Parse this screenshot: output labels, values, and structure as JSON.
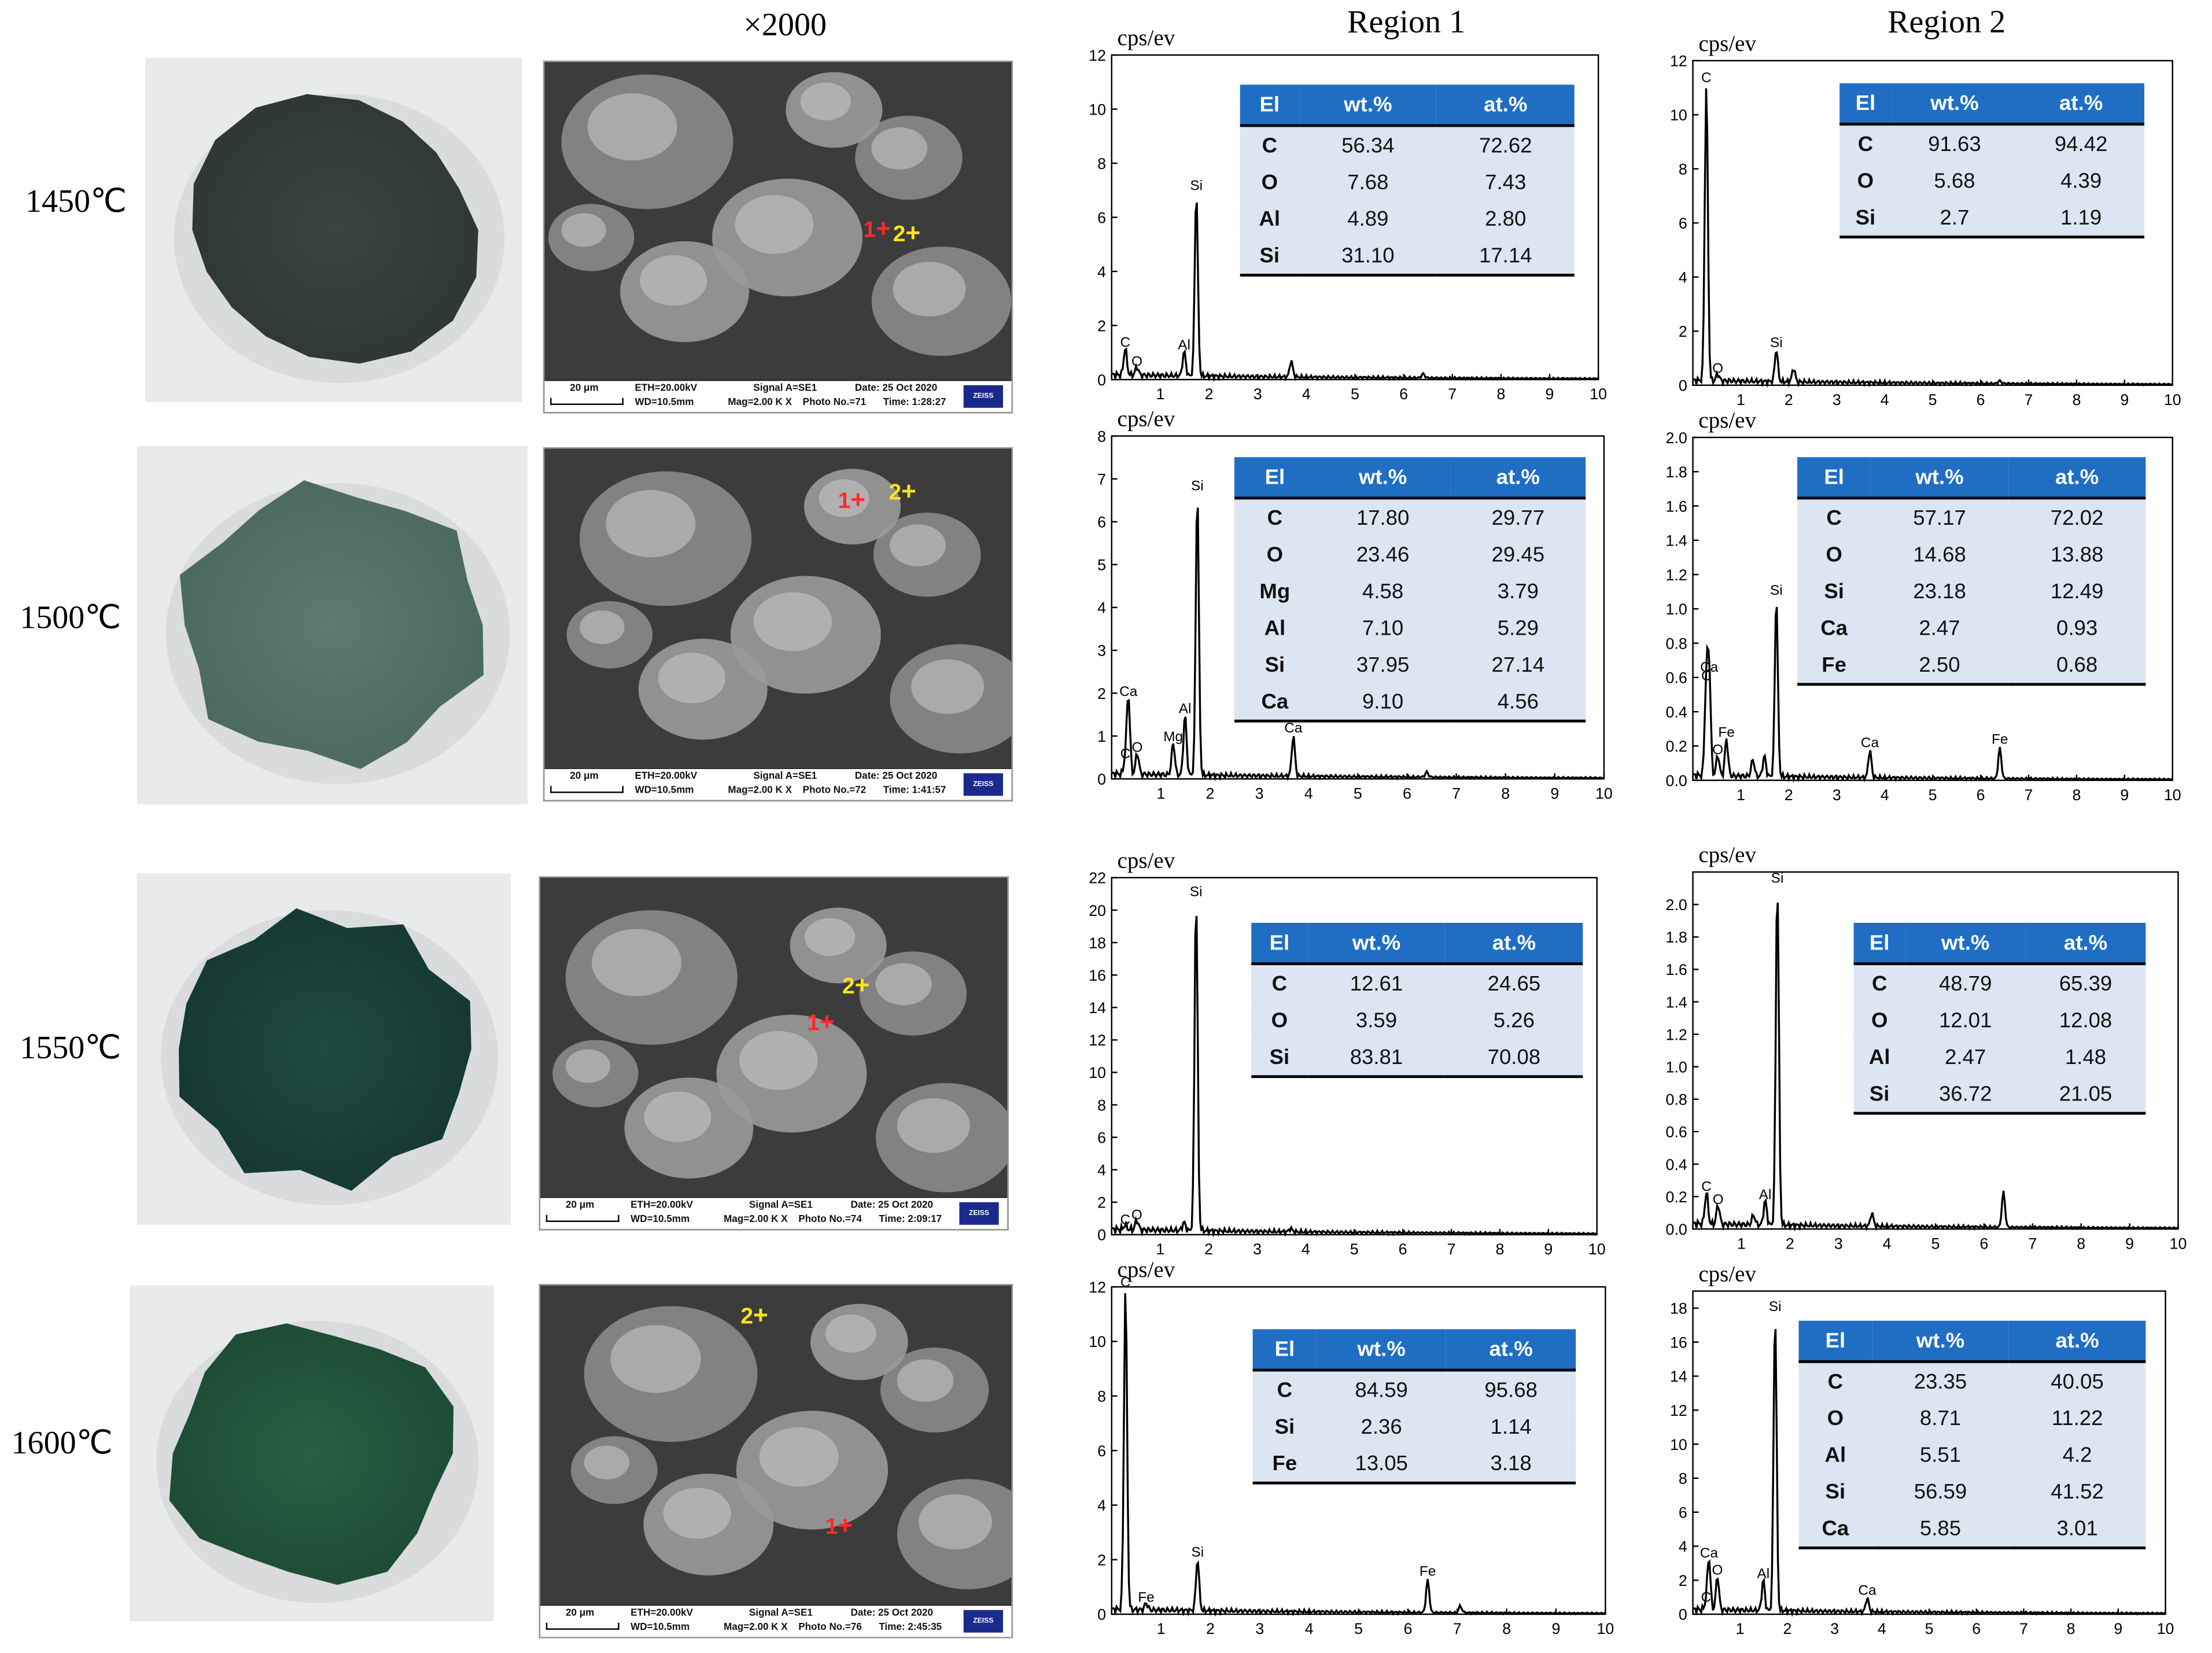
{
  "headers": {
    "magnification": "×2000",
    "region1": "Region 1",
    "region2": "Region 2"
  },
  "table_headers": [
    "El",
    "wt.%",
    "at.%"
  ],
  "sem_strip": {
    "scale": "20 μm",
    "eth": "ETH=20.00kV",
    "wd": "WD=10.5mm",
    "signal": "Signal A=SE1",
    "mag": "Mag=2.00 K X",
    "date": "Date:  25 Oct 2020",
    "logo": "ZEISS"
  },
  "marker_labels": [
    "1",
    "2"
  ],
  "rows": [
    {
      "temp": "1450℃",
      "photo_no": "Photo No.=71",
      "time": "Time: 1:28:27",
      "region1": {
        "ylabel": "cps/ev",
        "ymax": 12,
        "yticks": [
          0,
          2,
          4,
          6,
          8,
          10,
          12
        ],
        "table": [
          [
            "C",
            "56.34",
            "72.62"
          ],
          [
            "O",
            "7.68",
            "7.43"
          ],
          [
            "Al",
            "4.89",
            "2.80"
          ],
          [
            "Si",
            "31.10",
            "17.14"
          ]
        ],
        "peaks": [
          {
            "x": 0.28,
            "y": 1.0,
            "label": "C"
          },
          {
            "x": 0.52,
            "y": 0.3,
            "label": "O"
          },
          {
            "x": 1.49,
            "y": 0.9,
            "label": "Al"
          },
          {
            "x": 1.74,
            "y": 6.8,
            "label": "Si"
          },
          {
            "x": 3.69,
            "y": 0.6,
            "label": ""
          },
          {
            "x": 6.4,
            "y": 0.15,
            "label": ""
          }
        ]
      },
      "region2": {
        "ylabel": "cps/ev",
        "ymax": 12,
        "yticks": [
          0,
          2,
          4,
          6,
          8,
          10,
          12
        ],
        "table": [
          [
            "C",
            "91.63",
            "94.42"
          ],
          [
            "O",
            "5.68",
            "4.39"
          ],
          [
            "Si",
            "2.7",
            "1.19"
          ]
        ],
        "peaks": [
          {
            "x": 0.28,
            "y": 11.0,
            "label": "C"
          },
          {
            "x": 0.52,
            "y": 0.25,
            "label": "O"
          },
          {
            "x": 1.74,
            "y": 1.2,
            "label": "Si"
          },
          {
            "x": 2.1,
            "y": 0.5,
            "label": ""
          },
          {
            "x": 6.4,
            "y": 0.1,
            "label": ""
          }
        ]
      }
    },
    {
      "temp": "1500℃",
      "photo_no": "Photo No.=72",
      "time": "Time: 1:41:57",
      "region1": {
        "ylabel": "cps/ev",
        "ymax": 8,
        "yticks": [
          0,
          1,
          2,
          3,
          4,
          5,
          6,
          7,
          8
        ],
        "table": [
          [
            "C",
            "17.80",
            "29.77"
          ],
          [
            "O",
            "23.46",
            "29.45"
          ],
          [
            "Mg",
            "4.58",
            "3.79"
          ],
          [
            "Al",
            "7.10",
            "5.29"
          ],
          [
            "Si",
            "37.95",
            "27.14"
          ],
          [
            "Ca",
            "9.10",
            "4.56"
          ]
        ],
        "peaks": [
          {
            "x": 0.28,
            "y": 0.35,
            "label": "C"
          },
          {
            "x": 0.34,
            "y": 1.8,
            "label": "Ca"
          },
          {
            "x": 0.52,
            "y": 0.5,
            "label": "O"
          },
          {
            "x": 1.25,
            "y": 0.75,
            "label": "Mg"
          },
          {
            "x": 1.49,
            "y": 1.4,
            "label": "Al"
          },
          {
            "x": 1.74,
            "y": 6.6,
            "label": "Si"
          },
          {
            "x": 3.69,
            "y": 0.95,
            "label": "Ca"
          },
          {
            "x": 6.4,
            "y": 0.12,
            "label": ""
          }
        ]
      },
      "region2": {
        "ylabel": "cps/ev",
        "ymax": 2.0,
        "yticks": [
          0,
          0.2,
          0.4,
          0.6,
          0.8,
          1.0,
          1.2,
          1.4,
          1.6,
          1.8,
          2.0
        ],
        "table": [
          [
            "C",
            "57.17",
            "72.02"
          ],
          [
            "O",
            "14.68",
            "13.88"
          ],
          [
            "Si",
            "23.18",
            "12.49"
          ],
          [
            "Ca",
            "2.47",
            "0.93"
          ],
          [
            "Fe",
            "2.50",
            "0.68"
          ]
        ],
        "peaks": [
          {
            "x": 0.28,
            "y": 0.55,
            "label": "C"
          },
          {
            "x": 0.34,
            "y": 0.6,
            "label": "Ca"
          },
          {
            "x": 0.52,
            "y": 0.12,
            "label": "O"
          },
          {
            "x": 0.7,
            "y": 0.22,
            "label": "Fe"
          },
          {
            "x": 1.25,
            "y": 0.1,
            "label": ""
          },
          {
            "x": 1.49,
            "y": 0.12,
            "label": ""
          },
          {
            "x": 1.74,
            "y": 1.05,
            "label": "Si"
          },
          {
            "x": 3.69,
            "y": 0.16,
            "label": "Ca"
          },
          {
            "x": 6.4,
            "y": 0.18,
            "label": "Fe"
          }
        ]
      }
    },
    {
      "temp": "1550℃",
      "photo_no": "Photo No.=74",
      "time": "Time: 2:09:17",
      "region1": {
        "ylabel": "cps/ev",
        "ymax": 22,
        "yticks": [
          0,
          2,
          4,
          6,
          8,
          10,
          12,
          14,
          16,
          18,
          20,
          22
        ],
        "table": [
          [
            "C",
            "12.61",
            "24.65"
          ],
          [
            "O",
            "3.59",
            "5.26"
          ],
          [
            "Si",
            "83.81",
            "70.08"
          ]
        ],
        "peaks": [
          {
            "x": 0.28,
            "y": 0.3,
            "label": "C"
          },
          {
            "x": 0.52,
            "y": 0.6,
            "label": "O"
          },
          {
            "x": 1.49,
            "y": 0.5,
            "label": ""
          },
          {
            "x": 1.74,
            "y": 20.5,
            "label": "Si"
          },
          {
            "x": 3.69,
            "y": 0.2,
            "label": ""
          }
        ]
      },
      "region2": {
        "ylabel": "cps/ev",
        "ymax": 2.2,
        "yticks": [
          0,
          0.2,
          0.4,
          0.6,
          0.8,
          1.0,
          1.2,
          1.4,
          1.6,
          1.8,
          2.0
        ],
        "table": [
          [
            "C",
            "48.79",
            "65.39"
          ],
          [
            "O",
            "12.01",
            "12.08"
          ],
          [
            "Al",
            "2.47",
            "1.48"
          ],
          [
            "Si",
            "36.72",
            "21.05"
          ]
        ],
        "peaks": [
          {
            "x": 0.28,
            "y": 0.2,
            "label": "C"
          },
          {
            "x": 0.52,
            "y": 0.12,
            "label": "O"
          },
          {
            "x": 1.25,
            "y": 0.06,
            "label": ""
          },
          {
            "x": 1.49,
            "y": 0.15,
            "label": "Al"
          },
          {
            "x": 1.74,
            "y": 2.1,
            "label": "Si"
          },
          {
            "x": 3.69,
            "y": 0.08,
            "label": ""
          },
          {
            "x": 6.4,
            "y": 0.22,
            "label": ""
          }
        ]
      }
    },
    {
      "temp": "1600℃",
      "photo_no": "Photo No.=76",
      "time": "Time: 2:45:35",
      "region1": {
        "ylabel": "cps/ev",
        "ymax": 12,
        "yticks": [
          0,
          2,
          4,
          6,
          8,
          10,
          12
        ],
        "table": [
          [
            "C",
            "84.59",
            "95.68"
          ],
          [
            "Si",
            "2.36",
            "1.14"
          ],
          [
            "Fe",
            "13.05",
            "3.18"
          ]
        ],
        "peaks": [
          {
            "x": 0.28,
            "y": 11.8,
            "label": "C"
          },
          {
            "x": 0.7,
            "y": 0.25,
            "label": "Fe"
          },
          {
            "x": 1.74,
            "y": 1.9,
            "label": "Si"
          },
          {
            "x": 6.4,
            "y": 1.2,
            "label": "Fe"
          },
          {
            "x": 7.06,
            "y": 0.25,
            "label": ""
          }
        ]
      },
      "region2": {
        "ylabel": "cps/ev",
        "ymax": 19,
        "yticks": [
          0,
          2,
          4,
          6,
          8,
          10,
          12,
          14,
          16,
          18
        ],
        "table": [
          [
            "C",
            "23.35",
            "40.05"
          ],
          [
            "O",
            "8.71",
            "11.22"
          ],
          [
            "Al",
            "5.51",
            "4.2"
          ],
          [
            "Si",
            "56.59",
            "41.52"
          ],
          [
            "Ca",
            "5.85",
            "3.01"
          ]
        ],
        "peaks": [
          {
            "x": 0.28,
            "y": 0.4,
            "label": "C"
          },
          {
            "x": 0.34,
            "y": 3.0,
            "label": "Ca"
          },
          {
            "x": 0.52,
            "y": 2.0,
            "label": "O"
          },
          {
            "x": 1.49,
            "y": 1.8,
            "label": "Al"
          },
          {
            "x": 1.74,
            "y": 17.5,
            "label": "Si"
          },
          {
            "x": 3.69,
            "y": 0.8,
            "label": "Ca"
          }
        ]
      }
    }
  ],
  "chart_data": [
    {
      "type": "line",
      "title": "Region 1",
      "xlim": [
        0,
        10
      ],
      "ylim": [
        0,
        12
      ],
      "ylabel": "cps/ev",
      "series": [
        {
          "values": [
            [
              0.28,
              1.0
            ],
            [
              0.52,
              0.3
            ],
            [
              1.49,
              0.9
            ],
            [
              1.74,
              6.8
            ],
            [
              3.69,
              0.6
            ]
          ]
        }
      ]
    },
    {
      "type": "line",
      "title": "Region 2",
      "xlim": [
        0,
        10
      ],
      "ylim": [
        0,
        12
      ],
      "ylabel": "cps/ev",
      "series": [
        {
          "values": [
            [
              0.28,
              11.0
            ],
            [
              0.52,
              0.25
            ],
            [
              1.74,
              1.2
            ],
            [
              2.1,
              0.5
            ]
          ]
        }
      ]
    },
    {
      "type": "line",
      "title": "",
      "xlim": [
        0,
        10
      ],
      "ylim": [
        0,
        8
      ],
      "ylabel": "cps/ev",
      "series": [
        {
          "values": [
            [
              0.34,
              1.8
            ],
            [
              0.52,
              0.5
            ],
            [
              1.25,
              0.75
            ],
            [
              1.49,
              1.4
            ],
            [
              1.74,
              6.6
            ],
            [
              3.69,
              0.95
            ]
          ]
        }
      ]
    },
    {
      "type": "line",
      "title": "",
      "xlim": [
        0,
        10
      ],
      "ylim": [
        0,
        2.0
      ],
      "ylabel": "cps/ev",
      "series": [
        {
          "values": [
            [
              0.28,
              0.55
            ],
            [
              0.52,
              0.12
            ],
            [
              0.7,
              0.22
            ],
            [
              1.74,
              1.05
            ],
            [
              3.69,
              0.16
            ],
            [
              6.4,
              0.18
            ]
          ]
        }
      ]
    },
    {
      "type": "line",
      "title": "",
      "xlim": [
        0,
        10
      ],
      "ylim": [
        0,
        22
      ],
      "ylabel": "cps/ev",
      "series": [
        {
          "values": [
            [
              0.28,
              0.3
            ],
            [
              0.52,
              0.6
            ],
            [
              1.74,
              20.5
            ]
          ]
        }
      ]
    },
    {
      "type": "line",
      "title": "",
      "xlim": [
        0,
        10
      ],
      "ylim": [
        0,
        2.2
      ],
      "ylabel": "cps/ev",
      "series": [
        {
          "values": [
            [
              0.28,
              0.2
            ],
            [
              0.52,
              0.12
            ],
            [
              1.49,
              0.15
            ],
            [
              1.74,
              2.1
            ],
            [
              6.4,
              0.22
            ]
          ]
        }
      ]
    },
    {
      "type": "line",
      "title": "",
      "xlim": [
        0,
        10
      ],
      "ylim": [
        0,
        12
      ],
      "ylabel": "cps/ev",
      "series": [
        {
          "values": [
            [
              0.28,
              11.8
            ],
            [
              0.7,
              0.25
            ],
            [
              1.74,
              1.9
            ],
            [
              6.4,
              1.2
            ]
          ]
        }
      ]
    },
    {
      "type": "line",
      "title": "",
      "xlim": [
        0,
        10
      ],
      "ylim": [
        0,
        19
      ],
      "ylabel": "cps/ev",
      "series": [
        {
          "values": [
            [
              0.34,
              3.0
            ],
            [
              0.52,
              2.0
            ],
            [
              1.49,
              1.8
            ],
            [
              1.74,
              17.5
            ],
            [
              3.69,
              0.8
            ]
          ]
        }
      ]
    }
  ]
}
